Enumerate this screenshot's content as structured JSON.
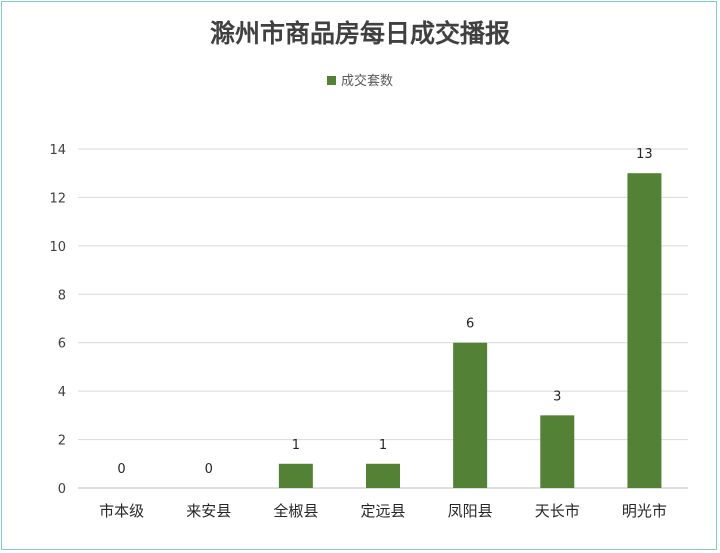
{
  "chart_data": {
    "type": "bar",
    "title": "滁州市商品房每日成交播报",
    "categories": [
      "市本级",
      "来安县",
      "全椒县",
      "定远县",
      "凤阳县",
      "天长市",
      "明光市"
    ],
    "series": [
      {
        "name": "成交套数",
        "values": [
          0,
          0,
          1,
          1,
          6,
          3,
          13
        ],
        "color": "#538135"
      }
    ],
    "ylim": [
      0,
      14
    ],
    "yticks": [
      0,
      2,
      4,
      6,
      8,
      10,
      12,
      14
    ],
    "grid": true,
    "legend": "top-center",
    "data_labels": true
  }
}
